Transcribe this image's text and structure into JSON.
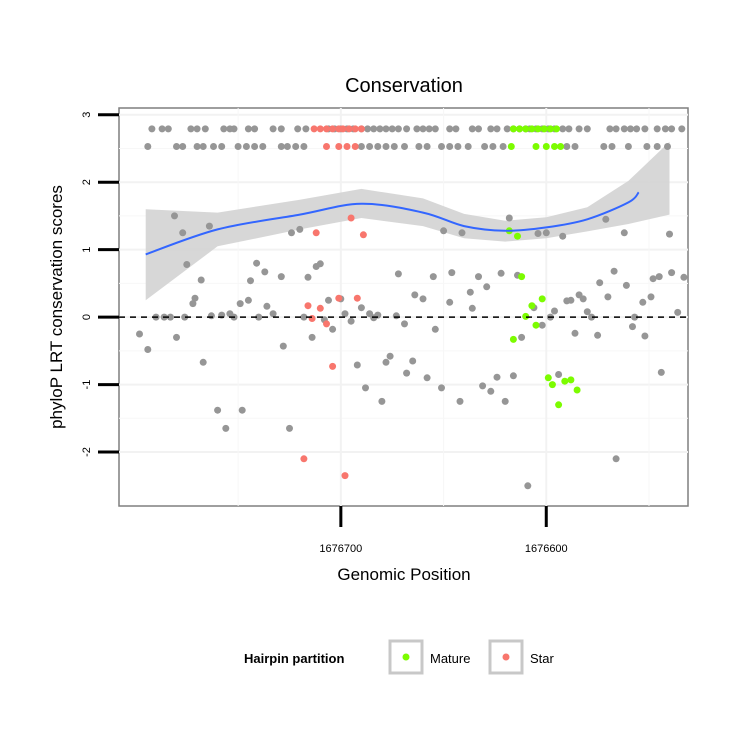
{
  "chart_data": {
    "type": "scatter",
    "title": "Conservation",
    "xlabel": "Genomic Position",
    "ylabel": "phyloP LRT conservation scores",
    "x_reversed": true,
    "xlim": [
      1676808,
      1676531
    ],
    "ylim": [
      -2.8,
      3.1
    ],
    "x_ticks": [
      {
        "value": 1676700,
        "label": "1676700"
      },
      {
        "value": 1676600,
        "label": "1676600"
      }
    ],
    "y_ticks": [
      {
        "value": -2,
        "label": "-2"
      },
      {
        "value": -1,
        "label": "-1"
      },
      {
        "value": 0,
        "label": "0"
      },
      {
        "value": 1,
        "label": "1"
      },
      {
        "value": 2,
        "label": "2"
      },
      {
        "value": 3,
        "label": "3"
      }
    ],
    "reference_line": {
      "y": 0,
      "style": "dashed"
    },
    "grid": true,
    "legend": {
      "title": "Hairpin partition",
      "position": "bottom",
      "entries": [
        {
          "label": "Mature",
          "color": "#7cfc00"
        },
        {
          "label": "Star",
          "color": "#f8766d"
        }
      ]
    },
    "colors": {
      "other": "#969696",
      "Mature": "#7cfc00",
      "Star": "#f8766d",
      "smooth": "#3366ff",
      "band": "#d3d3d3"
    },
    "smooth": {
      "x": [
        1676795,
        1676760,
        1676720,
        1676690,
        1676660,
        1676640,
        1676620,
        1676600,
        1676580,
        1676560,
        1676540,
        1676555
      ],
      "y": [
        0.93,
        1.3,
        1.52,
        1.68,
        1.55,
        1.35,
        1.28,
        1.33,
        1.45,
        1.7,
        2.06,
        1.85
      ],
      "order": "by_x"
    },
    "band": {
      "x": [
        1676795,
        1676760,
        1676720,
        1676690,
        1676660,
        1676640,
        1676620,
        1676600,
        1676580,
        1676560,
        1676540
      ],
      "lower": [
        0.25,
        1.05,
        1.3,
        1.47,
        1.35,
        1.17,
        1.12,
        1.17,
        1.27,
        1.38,
        1.52
      ],
      "upper": [
        1.6,
        1.55,
        1.74,
        1.9,
        1.76,
        1.53,
        1.43,
        1.48,
        1.63,
        2.02,
        2.6
      ]
    },
    "series": [
      {
        "name": "Other",
        "x": [
          1676781,
          1676777,
          1676775,
          1676771,
          1676767,
          1676763,
          1676758,
          1676754,
          1676749,
          1676745,
          1676741,
          1676737,
          1676733,
          1676729,
          1676725,
          1676720,
          1676716,
          1676712,
          1676710,
          1676706,
          1676700,
          1676695,
          1676690,
          1676686,
          1676682,
          1676678,
          1676673,
          1676669,
          1676665,
          1676660,
          1676655,
          1676651,
          1676647,
          1676642,
          1676637,
          1676633,
          1676629,
          1676622,
          1676618,
          1676614,
          1676609,
          1676604,
          1676600,
          1676596,
          1676592,
          1676588,
          1676584,
          1676580,
          1676575,
          1676571,
          1676567,
          1676562,
          1676558,
          1676553,
          1676549,
          1676545,
          1676540,
          1676536,
          1676533,
          1676798,
          1676794,
          1676790,
          1676786,
          1676783,
          1676780,
          1676776,
          1676772,
          1676768,
          1676764,
          1676760,
          1676756,
          1676752,
          1676748,
          1676744,
          1676740,
          1676736,
          1676728,
          1676724,
          1676718,
          1676714,
          1676708,
          1676704,
          1676698,
          1676692,
          1676688,
          1676684,
          1676680,
          1676676,
          1676672,
          1676668,
          1676664,
          1676658,
          1676654,
          1676650,
          1676646,
          1676641,
          1676636,
          1676631,
          1676627,
          1676624,
          1676620,
          1676616,
          1676612,
          1676606,
          1676602,
          1676598,
          1676594,
          1676590,
          1676586,
          1676582,
          1676578,
          1676574,
          1676570,
          1676566,
          1676561,
          1676557,
          1676552,
          1676548,
          1676544,
          1676539
        ],
        "y": [
          1.5,
          1.25,
          0.78,
          0.28,
          -0.67,
          0.02,
          0.03,
          0.05,
          0.2,
          0.25,
          0.8,
          0.67,
          0.05,
          0.6,
          -1.65,
          1.3,
          0.59,
          0.75,
          0.79,
          0.25,
          0.27,
          -0.06,
          0.14,
          0.05,
          0.03,
          -0.67,
          0.02,
          -0.1,
          -0.65,
          0.27,
          0.6,
          -1.05,
          0.22,
          -1.25,
          0.37,
          0.6,
          0.45,
          0.65,
          1.47,
          0.62,
          -2.5,
          1.24,
          1.25,
          0.09,
          1.2,
          0.25,
          0.33,
          0.08,
          -0.27,
          1.45,
          0.68,
          1.25,
          -0.14,
          0.22,
          0.3,
          0.6,
          1.23,
          0.07,
          0.59,
          -0.25,
          -0.48,
          0.0,
          0.0,
          0.0,
          -0.3,
          0.0,
          0.2,
          0.55,
          1.35,
          -1.38,
          -1.65,
          0.0,
          -1.38,
          0.54,
          0.0,
          0.16,
          -0.43,
          1.25,
          0.0,
          -0.3,
          -0.04,
          -0.18,
          0.05,
          -0.71,
          -1.05,
          -0.01,
          -1.25,
          -0.58,
          0.64,
          -0.83,
          0.33,
          -0.9,
          -0.18,
          1.28,
          0.66,
          1.25,
          0.13,
          -1.02,
          -1.1,
          -0.89,
          -1.25,
          -0.87,
          -0.3,
          0.14,
          -0.12,
          0.0,
          -0.85,
          0.24,
          -0.24,
          0.27,
          0.0,
          0.51,
          0.3,
          -2.1,
          0.47,
          0.0,
          -0.28,
          0.57,
          -0.82,
          0.66
        ],
        "color": "#969696"
      },
      {
        "name": "Mature",
        "x": [
          1676618,
          1676616,
          1676614,
          1676612,
          1676610,
          1676607,
          1676605,
          1676602,
          1676599,
          1676597,
          1676594,
          1676591,
          1676588,
          1676585
        ],
        "y": [
          1.28,
          -0.33,
          1.2,
          0.6,
          0.01,
          0.17,
          -0.12,
          0.27,
          -0.9,
          -1.0,
          -1.3,
          -0.95,
          -0.93,
          -1.08
        ],
        "color": "#7cfc00"
      },
      {
        "name": "Star",
        "x": [
          1676718,
          1676716,
          1676714,
          1676712,
          1676710,
          1676707,
          1676704,
          1676701,
          1676698,
          1676695,
          1676692,
          1676689
        ],
        "y": [
          -2.1,
          0.17,
          -0.02,
          1.25,
          0.13,
          -0.1,
          -0.73,
          0.28,
          -2.35,
          1.47,
          0.28,
          1.22
        ],
        "color": "#f8766d"
      },
      {
        "name": "Rug-row1",
        "x": [
          1676792,
          1676787,
          1676784,
          1676773,
          1676770,
          1676766,
          1676757,
          1676754,
          1676752,
          1676745,
          1676742,
          1676733,
          1676729,
          1676721,
          1676717,
          1676706,
          1676703,
          1676700,
          1676697,
          1676694,
          1676690,
          1676687,
          1676684,
          1676681,
          1676678,
          1676675,
          1676672,
          1676668,
          1676663,
          1676660,
          1676657,
          1676654,
          1676647,
          1676644,
          1676636,
          1676633,
          1676627,
          1676624,
          1676619,
          1676616,
          1676613,
          1676610,
          1676608,
          1676605,
          1676602,
          1676599,
          1676596,
          1676592,
          1676589,
          1676584,
          1676580,
          1676569,
          1676566,
          1676562,
          1676559,
          1676556,
          1676552,
          1676546,
          1676542,
          1676539,
          1676534
        ],
        "y": [
          2.79,
          2.79,
          2.79,
          2.79,
          2.79,
          2.79,
          2.79,
          2.79,
          2.79,
          2.79,
          2.79,
          2.79,
          2.79,
          2.79,
          2.79,
          2.79,
          2.79,
          2.79,
          2.79,
          2.79,
          2.79,
          2.79,
          2.79,
          2.79,
          2.79,
          2.79,
          2.79,
          2.79,
          2.79,
          2.79,
          2.79,
          2.79,
          2.79,
          2.79,
          2.79,
          2.79,
          2.79,
          2.79,
          2.79,
          2.79,
          2.79,
          2.79,
          2.79,
          2.79,
          2.79,
          2.79,
          2.79,
          2.79,
          2.79,
          2.79,
          2.79,
          2.79,
          2.79,
          2.79,
          2.79,
          2.79,
          2.79,
          2.79,
          2.79,
          2.79,
          2.79
        ],
        "color": "#969696"
      },
      {
        "name": "Rug-row2",
        "x": [
          1676794,
          1676780,
          1676777,
          1676770,
          1676767,
          1676762,
          1676758,
          1676750,
          1676746,
          1676742,
          1676738,
          1676729,
          1676726,
          1676722,
          1676718,
          1676690,
          1676686,
          1676682,
          1676678,
          1676674,
          1676669,
          1676662,
          1676658,
          1676651,
          1676647,
          1676643,
          1676638,
          1676630,
          1676626,
          1676621,
          1676590,
          1676586,
          1676572,
          1676568,
          1676560,
          1676551,
          1676546,
          1676541
        ],
        "y": [
          2.53,
          2.53,
          2.53,
          2.53,
          2.53,
          2.53,
          2.53,
          2.53,
          2.53,
          2.53,
          2.53,
          2.53,
          2.53,
          2.53,
          2.53,
          2.53,
          2.53,
          2.53,
          2.53,
          2.53,
          2.53,
          2.53,
          2.53,
          2.53,
          2.53,
          2.53,
          2.53,
          2.53,
          2.53,
          2.53,
          2.53,
          2.53,
          2.53,
          2.53,
          2.53,
          2.53,
          2.53,
          2.53
        ],
        "color": "#969696"
      },
      {
        "name": "Rug-Star",
        "x": [
          1676713,
          1676710,
          1676707,
          1676704,
          1676701,
          1676699,
          1676696,
          1676693,
          1676690,
          1676707,
          1676701,
          1676697,
          1676693
        ],
        "y": [
          2.79,
          2.79,
          2.79,
          2.79,
          2.79,
          2.79,
          2.79,
          2.79,
          2.79,
          2.53,
          2.53,
          2.53,
          2.53
        ],
        "color": "#f8766d"
      },
      {
        "name": "Rug-Mature",
        "x": [
          1676616,
          1676613,
          1676610,
          1676607,
          1676604,
          1676601,
          1676598,
          1676595,
          1676617,
          1676605,
          1676600,
          1676596,
          1676593
        ],
        "y": [
          2.79,
          2.79,
          2.79,
          2.79,
          2.79,
          2.79,
          2.79,
          2.79,
          2.53,
          2.53,
          2.53,
          2.53,
          2.53
        ],
        "color": "#7cfc00"
      }
    ]
  }
}
